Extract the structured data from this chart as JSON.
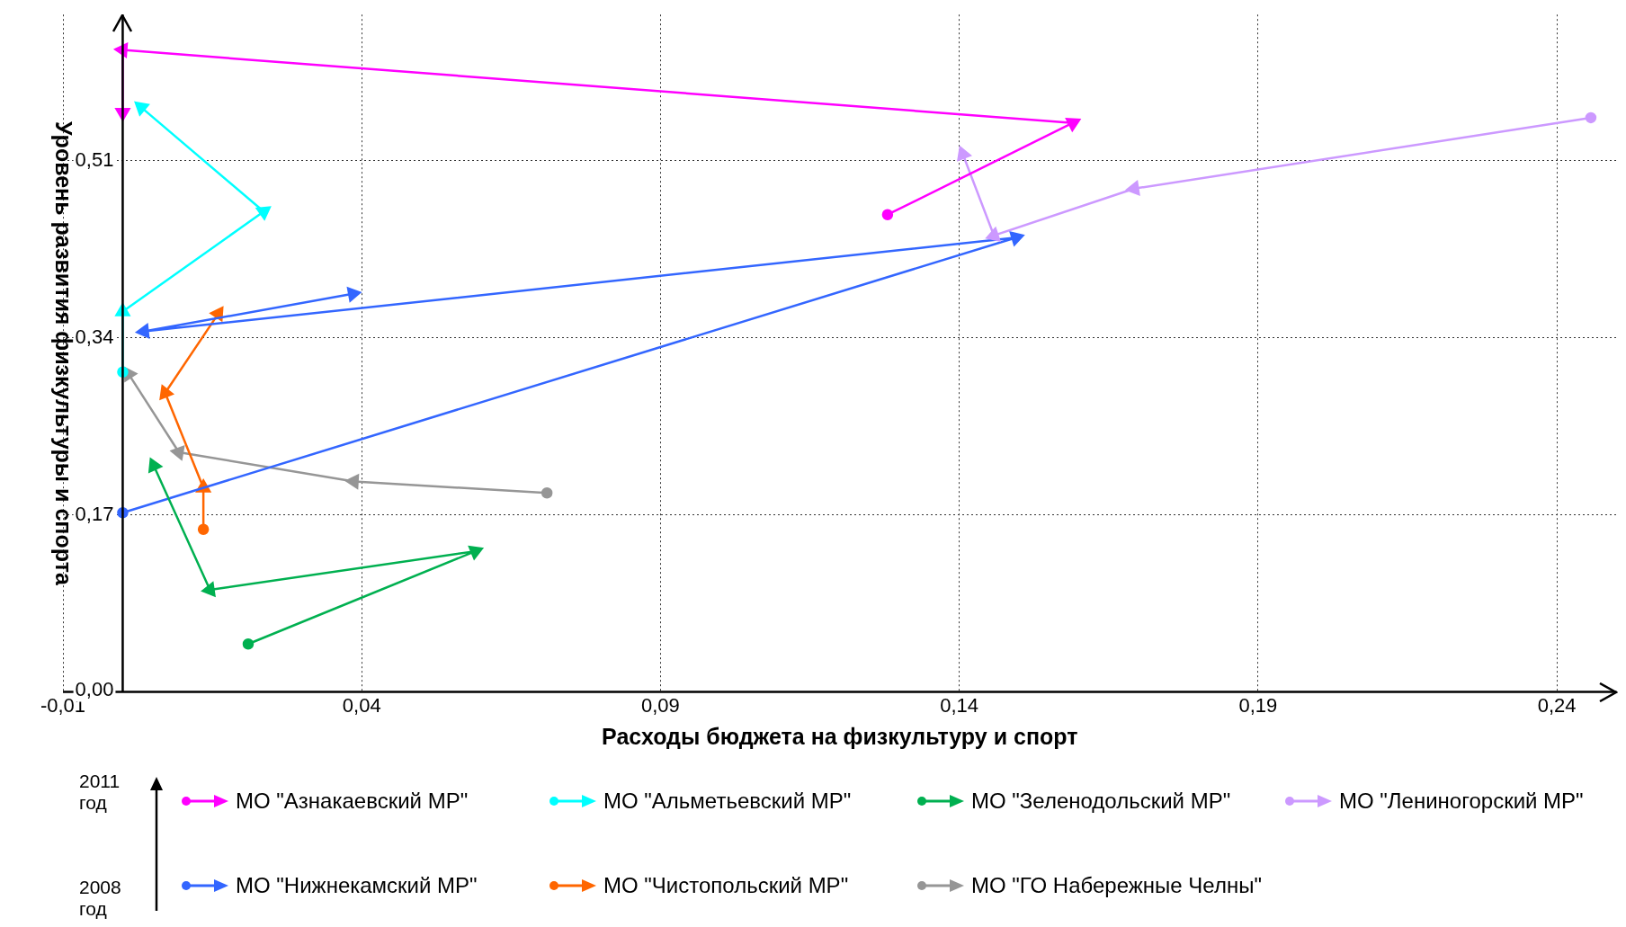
{
  "chart_data": {
    "type": "line",
    "xlabel": "Расходы бюджета на физкультуру и спорт",
    "ylabel": "Уровень развития физкультуры и спорта",
    "xlim": [
      -0.01,
      0.25
    ],
    "ylim": [
      0,
      0.65
    ],
    "xticks": [
      {
        "value": -0.01,
        "label": "-0,01"
      },
      {
        "value": 0.04,
        "label": "0,04"
      },
      {
        "value": 0.09,
        "label": "0,09"
      },
      {
        "value": 0.14,
        "label": "0,14"
      },
      {
        "value": 0.19,
        "label": "0,19"
      },
      {
        "value": 0.24,
        "label": "0,24"
      }
    ],
    "yticks": [
      {
        "value": 0,
        "label": "0,00"
      },
      {
        "value": 0.17,
        "label": "0,17"
      },
      {
        "value": 0.34,
        "label": "0,34"
      },
      {
        "value": 0.51,
        "label": "0,51"
      }
    ],
    "grid": true,
    "legend": "bottom",
    "marker": "circle",
    "line_style": "solid",
    "annotations": [
      "2011 год",
      "2008 год"
    ],
    "series": [
      {
        "name": "МО \"Азнакаевский МР\"",
        "color": "#ff00ff",
        "x": [
          0.128,
          0.159,
          0,
          0
        ],
        "values": [
          0.458,
          0.546,
          0.616,
          0.556
        ]
      },
      {
        "name": "МО \"Альметьевский МР\"",
        "color": "#00ffff",
        "x": [
          0,
          0,
          0.0236,
          0.0031
        ],
        "values": [
          0.307,
          0.365,
          0.461,
          0.561
        ]
      },
      {
        "name": "МО \"Зеленодольский МР\"",
        "color": "#00b050",
        "x": [
          0.021,
          0.059,
          0.0146,
          0.0052
        ],
        "values": [
          0.046,
          0.135,
          0.098,
          0.217
        ]
      },
      {
        "name": "МО \"Лениногорский МР\"",
        "color": "#cc99ff",
        "x": [
          0.2457,
          0.1693,
          0.1458,
          0.1406
        ],
        "values": [
          0.551,
          0.483,
          0.438,
          0.516
        ]
      },
      {
        "name": "МО \"Нижнекамский МР\"",
        "color": "#3366ff",
        "x": [
          0,
          0.1495,
          0.0036,
          0.0385
        ],
        "values": [
          0.172,
          0.436,
          0.346,
          0.382
        ]
      },
      {
        "name": "МО \"Чистопольский МР\"",
        "color": "#ff6600",
        "x": [
          0.0135,
          0.0135,
          0.0071,
          0.016
        ],
        "values": [
          0.156,
          0.196,
          0.287,
          0.363
        ]
      },
      {
        "name": "МО \"ГО Набережные Челны\"",
        "color": "#969696",
        "x": [
          0.071,
          0.0387,
          0.0094,
          0.001
        ],
        "values": [
          0.191,
          0.202,
          0.23,
          0.305
        ]
      }
    ]
  }
}
